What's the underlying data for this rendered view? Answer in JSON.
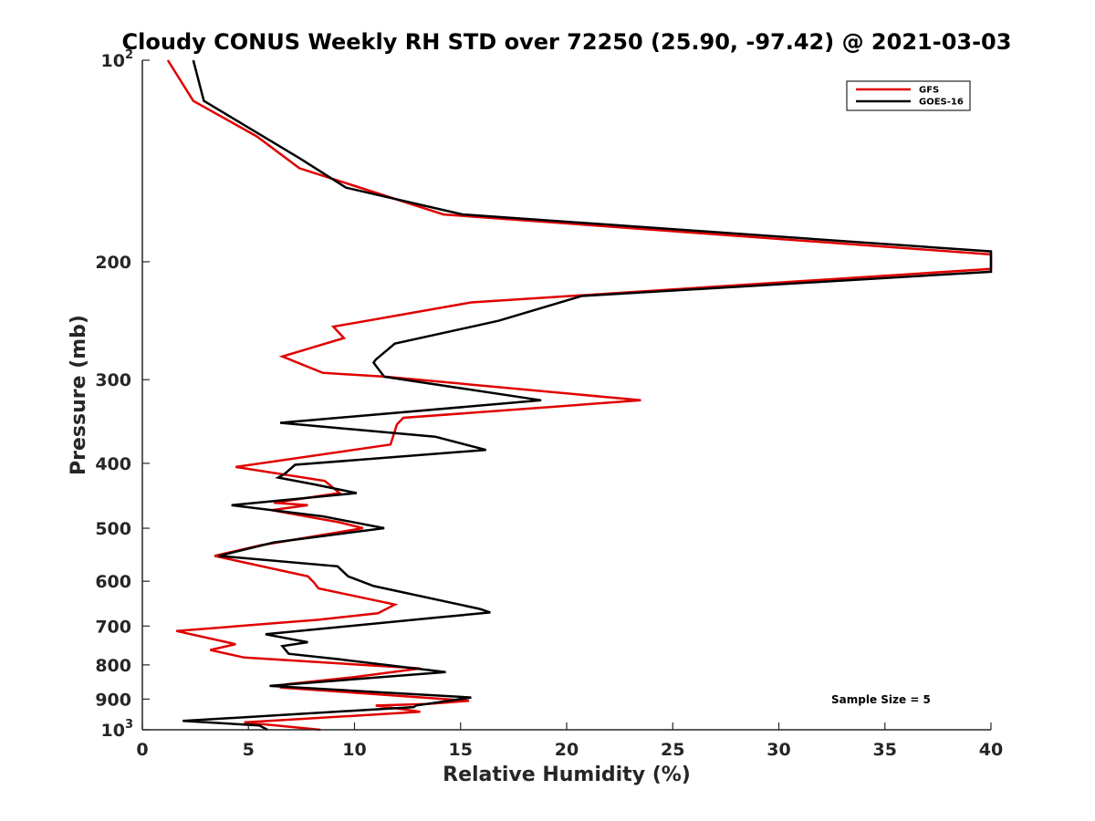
{
  "chart_data": {
    "type": "line",
    "title": "Cloudy CONUS Weekly RH STD over 72250 (25.90, -97.42) @ 2021-03-03",
    "xlabel": "Relative Humidity (%)",
    "ylabel": "Pressure (mb)",
    "xlim": [
      0,
      40
    ],
    "ylim": [
      100,
      1000
    ],
    "y_scale": "log",
    "y_reversed": true,
    "x_ticks": [
      "0",
      "5",
      "10",
      "15",
      "20",
      "25",
      "30",
      "35",
      "40"
    ],
    "y_ticks": [
      {
        "value": 100,
        "base": "10",
        "exp": "2"
      },
      {
        "value": 200,
        "label": "200"
      },
      {
        "value": 300,
        "label": "300"
      },
      {
        "value": 400,
        "label": "400"
      },
      {
        "value": 500,
        "label": "500"
      },
      {
        "value": 600,
        "label": "600"
      },
      {
        "value": 700,
        "label": "700"
      },
      {
        "value": 800,
        "label": "800"
      },
      {
        "value": 900,
        "label": "900"
      },
      {
        "value": 1000,
        "base": "10",
        "exp": "3"
      }
    ],
    "grid": false,
    "legend_position": "top-right",
    "annotation": "Sample Size = 5",
    "series": [
      {
        "name": "GFS",
        "color": "#e00000",
        "points": [
          [
            1.2,
            100
          ],
          [
            2.4,
            115
          ],
          [
            5.4,
            130
          ],
          [
            7.4,
            145
          ],
          [
            14.2,
            170
          ],
          [
            40,
            195
          ],
          [
            40,
            205
          ],
          [
            15.5,
            230
          ],
          [
            9.0,
            250
          ],
          [
            9.5,
            260
          ],
          [
            6.6,
            277
          ],
          [
            8.5,
            293
          ],
          [
            11.5,
            297
          ],
          [
            23.5,
            322
          ],
          [
            12.3,
            342
          ],
          [
            12.0,
            350
          ],
          [
            11.7,
            375
          ],
          [
            4.4,
            405
          ],
          [
            8.6,
            425
          ],
          [
            9.3,
            443
          ],
          [
            6.2,
            458
          ],
          [
            7.8,
            462
          ],
          [
            6.1,
            470
          ],
          [
            9.3,
            490
          ],
          [
            10.4,
            500
          ],
          [
            5.6,
            530
          ],
          [
            3.4,
            550
          ],
          [
            7.8,
            590
          ],
          [
            8.1,
            603
          ],
          [
            8.3,
            615
          ],
          [
            11.9,
            650
          ],
          [
            11.1,
            670
          ],
          [
            8.3,
            685
          ],
          [
            1.6,
            712
          ],
          [
            4.4,
            745
          ],
          [
            3.2,
            760
          ],
          [
            4.8,
            780
          ],
          [
            13.1,
            810
          ],
          [
            9.9,
            835
          ],
          [
            6.8,
            855
          ],
          [
            6.6,
            865
          ],
          [
            15.4,
            905
          ],
          [
            13.4,
            915
          ],
          [
            11.0,
            920
          ],
          [
            13.1,
            940
          ],
          [
            4.8,
            975
          ],
          [
            8.4,
            1000
          ]
        ]
      },
      {
        "name": "GOES-16",
        "color": "#000000",
        "points": [
          [
            2.4,
            100
          ],
          [
            2.9,
            115
          ],
          [
            7.4,
            140
          ],
          [
            9.6,
            155
          ],
          [
            15.1,
            170
          ],
          [
            40,
            193
          ],
          [
            40,
            207
          ],
          [
            20.7,
            225
          ],
          [
            16.8,
            245
          ],
          [
            11.9,
            265
          ],
          [
            11.0,
            280
          ],
          [
            10.9,
            283
          ],
          [
            11.4,
            297
          ],
          [
            18.8,
            322
          ],
          [
            6.5,
            348
          ],
          [
            13.8,
            365
          ],
          [
            16.2,
            382
          ],
          [
            7.2,
            402
          ],
          [
            6.7,
            415
          ],
          [
            6.4,
            420
          ],
          [
            8.1,
            430
          ],
          [
            10.1,
            443
          ],
          [
            4.2,
            462
          ],
          [
            8.5,
            480
          ],
          [
            11.4,
            500
          ],
          [
            6.2,
            525
          ],
          [
            3.6,
            550
          ],
          [
            9.2,
            570
          ],
          [
            9.7,
            590
          ],
          [
            10.9,
            610
          ],
          [
            15.9,
            660
          ],
          [
            16.4,
            668
          ],
          [
            13.8,
            680
          ],
          [
            5.8,
            720
          ],
          [
            7.8,
            740
          ],
          [
            6.6,
            750
          ],
          [
            6.9,
            770
          ],
          [
            9.3,
            785
          ],
          [
            14.3,
            820
          ],
          [
            10.1,
            840
          ],
          [
            6.0,
            860
          ],
          [
            15.5,
            895
          ],
          [
            12.9,
            920
          ],
          [
            12.8,
            925
          ],
          [
            1.9,
            970
          ],
          [
            5.5,
            985
          ],
          [
            5.9,
            1000
          ]
        ]
      }
    ]
  }
}
